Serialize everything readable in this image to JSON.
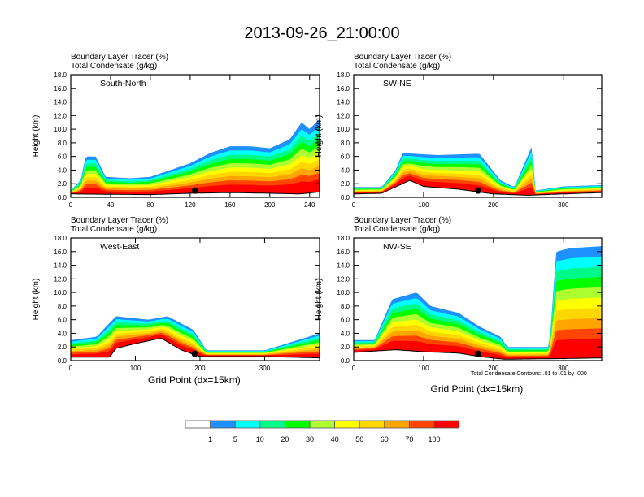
{
  "title": "2013-09-26_21:00:00",
  "chart_data": [
    {
      "type": "heatmap",
      "panel": "South-North",
      "subtitle_lines": [
        "Boundary Layer Tracer   (%)",
        "Total Condensate   (g/kg)"
      ],
      "ylabel": "Height (km)",
      "xlabel": "",
      "xlim": [
        0,
        250
      ],
      "ylim": [
        0,
        18
      ],
      "xticks": [
        0,
        40,
        80,
        120,
        160,
        200,
        240
      ],
      "yticks": [
        "0.0",
        "2.0",
        "4.0",
        "6.0",
        "8.0",
        "10.0",
        "12.0",
        "14.0",
        "16.0",
        "18.0"
      ],
      "tracer_top_profile": [
        [
          0,
          1.0
        ],
        [
          10,
          2.5
        ],
        [
          15,
          6.0
        ],
        [
          25,
          6.0
        ],
        [
          35,
          3.0
        ],
        [
          60,
          2.8
        ],
        [
          80,
          3.0
        ],
        [
          100,
          4.0
        ],
        [
          120,
          5.0
        ],
        [
          140,
          6.5
        ],
        [
          160,
          7.5
        ],
        [
          180,
          7.5
        ],
        [
          200,
          7.2
        ],
        [
          220,
          8.5
        ],
        [
          232,
          11.0
        ],
        [
          240,
          10.0
        ],
        [
          250,
          11.5
        ]
      ],
      "terrain_profile": [
        [
          0,
          0.5
        ],
        [
          80,
          0.4
        ],
        [
          120,
          0.6
        ],
        [
          160,
          0.7
        ],
        [
          200,
          0.6
        ],
        [
          230,
          0.5
        ],
        [
          250,
          0.8
        ]
      ],
      "marker_point": [
        125,
        1.0
      ]
    },
    {
      "type": "heatmap",
      "panel": "SW-NE",
      "subtitle_lines": [
        "Boundary Layer Tracer   (%)",
        "Total Condensate   (g/kg)"
      ],
      "ylabel": "Height (km)",
      "xlabel": "",
      "xlim": [
        0,
        355
      ],
      "ylim": [
        0,
        18
      ],
      "xticks": [
        0,
        100,
        200,
        300
      ],
      "yticks": [
        "0.0",
        "2.0",
        "4.0",
        "6.0",
        "8.0",
        "10.0",
        "12.0",
        "14.0",
        "16.0",
        "18.0"
      ],
      "tracer_top_profile": [
        [
          0,
          1.5
        ],
        [
          40,
          1.5
        ],
        [
          60,
          4.0
        ],
        [
          70,
          6.5
        ],
        [
          120,
          6.2
        ],
        [
          180,
          6.4
        ],
        [
          210,
          2.5
        ],
        [
          255,
          7.5
        ],
        [
          230,
          1.5
        ],
        [
          260,
          1.0
        ],
        [
          300,
          1.6
        ],
        [
          355,
          1.8
        ]
      ],
      "terrain_profile": [
        [
          0,
          0.5
        ],
        [
          40,
          0.6
        ],
        [
          70,
          2.0
        ],
        [
          80,
          2.5
        ],
        [
          100,
          1.6
        ],
        [
          150,
          1.2
        ],
        [
          200,
          0.5
        ],
        [
          250,
          0.3
        ],
        [
          300,
          0.5
        ],
        [
          355,
          0.7
        ]
      ],
      "marker_point": [
        178,
        1.0
      ]
    },
    {
      "type": "heatmap",
      "panel": "West-East",
      "subtitle_lines": [
        "Boundary Layer Tracer   (%)",
        "Total Condensate   (g/kg)"
      ],
      "ylabel": "Height (km)",
      "xlabel": "Grid Point (dx=15km)",
      "xlim": [
        0,
        385
      ],
      "ylim": [
        0,
        18
      ],
      "xticks": [
        0,
        100,
        200,
        300
      ],
      "yticks": [
        "0.0",
        "2.0",
        "4.0",
        "6.0",
        "8.0",
        "10.0",
        "12.0",
        "14.0",
        "16.0",
        "18.0"
      ],
      "tracer_top_profile": [
        [
          0,
          3.0
        ],
        [
          40,
          3.5
        ],
        [
          70,
          6.5
        ],
        [
          120,
          6.0
        ],
        [
          150,
          6.5
        ],
        [
          190,
          4.5
        ],
        [
          210,
          1.5
        ],
        [
          300,
          1.5
        ],
        [
          385,
          4.0
        ]
      ],
      "terrain_profile": [
        [
          0,
          0.5
        ],
        [
          60,
          0.5
        ],
        [
          70,
          1.8
        ],
        [
          100,
          2.5
        ],
        [
          140,
          3.3
        ],
        [
          170,
          1.6
        ],
        [
          200,
          0.6
        ],
        [
          300,
          0.6
        ],
        [
          385,
          0.4
        ]
      ],
      "marker_point": [
        192,
        1.0
      ]
    },
    {
      "type": "heatmap",
      "panel": "NW-SE",
      "subtitle_lines": [
        "Boundary Layer Tracer   (%)",
        "Total Condensate   (g/kg)"
      ],
      "ylabel": "Height (km)",
      "xlabel": "Grid Point (dx=15km)",
      "xlim": [
        0,
        355
      ],
      "ylim": [
        0,
        18
      ],
      "xticks": [
        0,
        100,
        200,
        300
      ],
      "yticks": [
        "0.0",
        "2.0",
        "4.0",
        "6.0",
        "8.0",
        "10.0",
        "12.0",
        "14.0",
        "16.0",
        "18.0"
      ],
      "tracer_top_profile": [
        [
          0,
          3.0
        ],
        [
          30,
          3.0
        ],
        [
          55,
          9.0
        ],
        [
          90,
          10.0
        ],
        [
          110,
          8.0
        ],
        [
          150,
          7.0
        ],
        [
          180,
          5.0
        ],
        [
          210,
          3.5
        ],
        [
          220,
          2.0
        ],
        [
          280,
          2.0
        ],
        [
          290,
          16.0
        ],
        [
          310,
          16.5
        ],
        [
          355,
          16.8
        ]
      ],
      "terrain_profile": [
        [
          0,
          1.2
        ],
        [
          60,
          1.6
        ],
        [
          100,
          1.3
        ],
        [
          150,
          1.1
        ],
        [
          180,
          0.6
        ],
        [
          215,
          0.2
        ],
        [
          300,
          0.3
        ],
        [
          355,
          0.4
        ]
      ],
      "marker_point": [
        178,
        1.0
      ],
      "contour_labels": [
        ".01",
        ".01"
      ],
      "contour_note": "Total Condensate Contours: .01 to .01 by .000"
    }
  ],
  "colorbar": {
    "levels": [
      "1",
      "5",
      "10",
      "20",
      "30",
      "40",
      "50",
      "60",
      "70",
      "100"
    ],
    "colors": [
      "#ffffff",
      "#1e90ff",
      "#00ffff",
      "#00fa8a",
      "#00ff00",
      "#adff2f",
      "#ffff00",
      "#ffd700",
      "#ffa500",
      "#ff4500",
      "#ff0000"
    ]
  }
}
